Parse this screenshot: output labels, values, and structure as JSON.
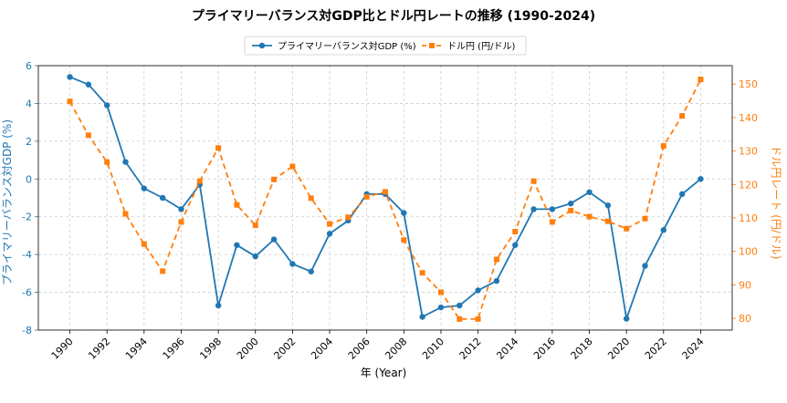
{
  "chart_data": {
    "type": "line",
    "title": "プライマリーバランス対GDP比とドル円レートの推移 (1990-2024)",
    "xlabel": "年 (Year)",
    "ylabel_left": "プライマリーバランス対GDP (%)",
    "ylabel_right": "ドル円レート (円/ドル)",
    "x": [
      1990,
      1991,
      1992,
      1993,
      1994,
      1995,
      1996,
      1997,
      1998,
      1999,
      2000,
      2001,
      2002,
      2003,
      2004,
      2005,
      2006,
      2007,
      2008,
      2009,
      2010,
      2011,
      2012,
      2013,
      2014,
      2015,
      2016,
      2017,
      2018,
      2019,
      2020,
      2021,
      2022,
      2023,
      2024
    ],
    "xticks": [
      "1990",
      "1992",
      "1994",
      "1996",
      "1998",
      "2000",
      "2002",
      "2004",
      "2006",
      "2008",
      "2010",
      "2012",
      "2014",
      "2016",
      "2018",
      "2020",
      "2022",
      "2024"
    ],
    "xlim": [
      1988.3,
      2025.7
    ],
    "ylim_left": [
      -8,
      6
    ],
    "yticks_left": [
      "-8",
      "-6",
      "-4",
      "-2",
      "0",
      "2",
      "4",
      "6"
    ],
    "ylim_right": [
      76.5,
      155.5
    ],
    "yticks_right": [
      "80",
      "90",
      "100",
      "110",
      "120",
      "130",
      "140",
      "150"
    ],
    "grid": true,
    "legend_position": "top-center",
    "series": [
      {
        "name": "プライマリーバランス対GDP (%)",
        "axis": "left",
        "color": "#1f77b4",
        "marker": "circle",
        "linestyle": "solid",
        "values": [
          5.4,
          5.0,
          3.9,
          0.9,
          -0.5,
          -1.0,
          -1.6,
          -0.3,
          -6.7,
          -3.5,
          -4.1,
          -3.2,
          -4.5,
          -4.9,
          -2.9,
          -2.2,
          -0.8,
          -0.8,
          -1.8,
          -7.3,
          -6.8,
          -6.7,
          -5.9,
          -5.4,
          -3.5,
          -1.6,
          -1.6,
          -1.3,
          -0.7,
          -1.4,
          -7.4,
          -4.6,
          -2.7,
          -0.8,
          0.0
        ]
      },
      {
        "name": "ドル円 (円/ドル)",
        "axis": "right",
        "color": "#ff7f0e",
        "marker": "square",
        "linestyle": "dashed",
        "values": [
          144.8,
          134.7,
          126.7,
          111.2,
          102.2,
          94.1,
          108.8,
          121.0,
          130.9,
          113.9,
          107.8,
          121.5,
          125.4,
          115.9,
          108.2,
          110.2,
          116.3,
          117.8,
          103.4,
          93.6,
          87.8,
          79.8,
          79.8,
          97.6,
          105.9,
          121.0,
          108.8,
          112.2,
          110.4,
          109.0,
          106.8,
          109.8,
          131.5,
          140.5,
          151.4
        ]
      }
    ]
  }
}
